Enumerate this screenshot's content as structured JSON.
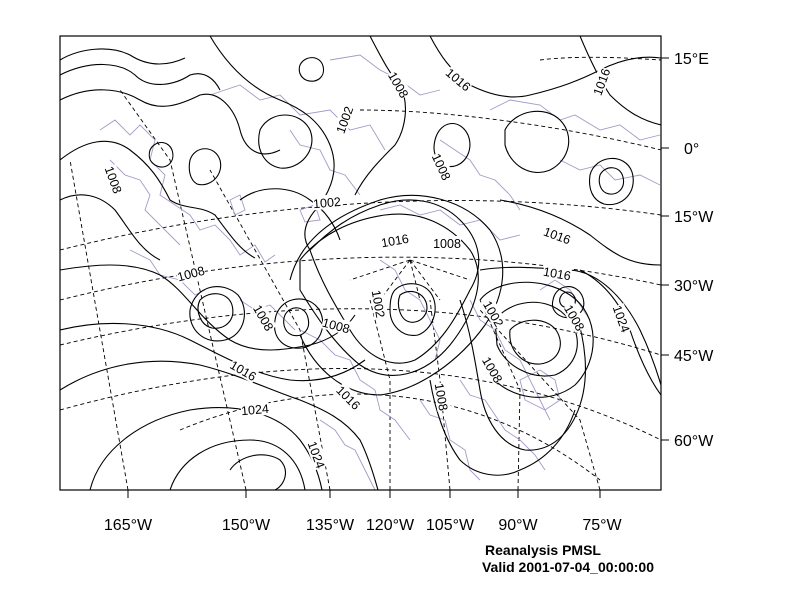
{
  "title": "Reanalysis PMSL",
  "valid_time": "Valid 2001-07-04_00:00:00",
  "bottom_axis_labels": [
    "165°W",
    "150°W",
    "135°W",
    "120°W",
    "105°W",
    "90°W",
    "75°W"
  ],
  "right_axis_labels": [
    "15°E",
    "0°",
    "15°W",
    "30°W",
    "45°W",
    "60°W"
  ],
  "contour_labels": [
    "1008",
    "1002",
    "1008",
    "1016",
    "1016",
    "1008",
    "1008",
    "1002",
    "1016",
    "1008",
    "1016",
    "1008",
    "1008",
    "1002",
    "1002",
    "1008",
    "1008",
    "1024",
    "1016",
    "1016",
    "1024",
    "1016",
    "1008",
    "1024"
  ],
  "colors": {
    "contour": "#000000",
    "coastline": "#a898c8",
    "graticule": "#000000",
    "background": "#ffffff"
  }
}
